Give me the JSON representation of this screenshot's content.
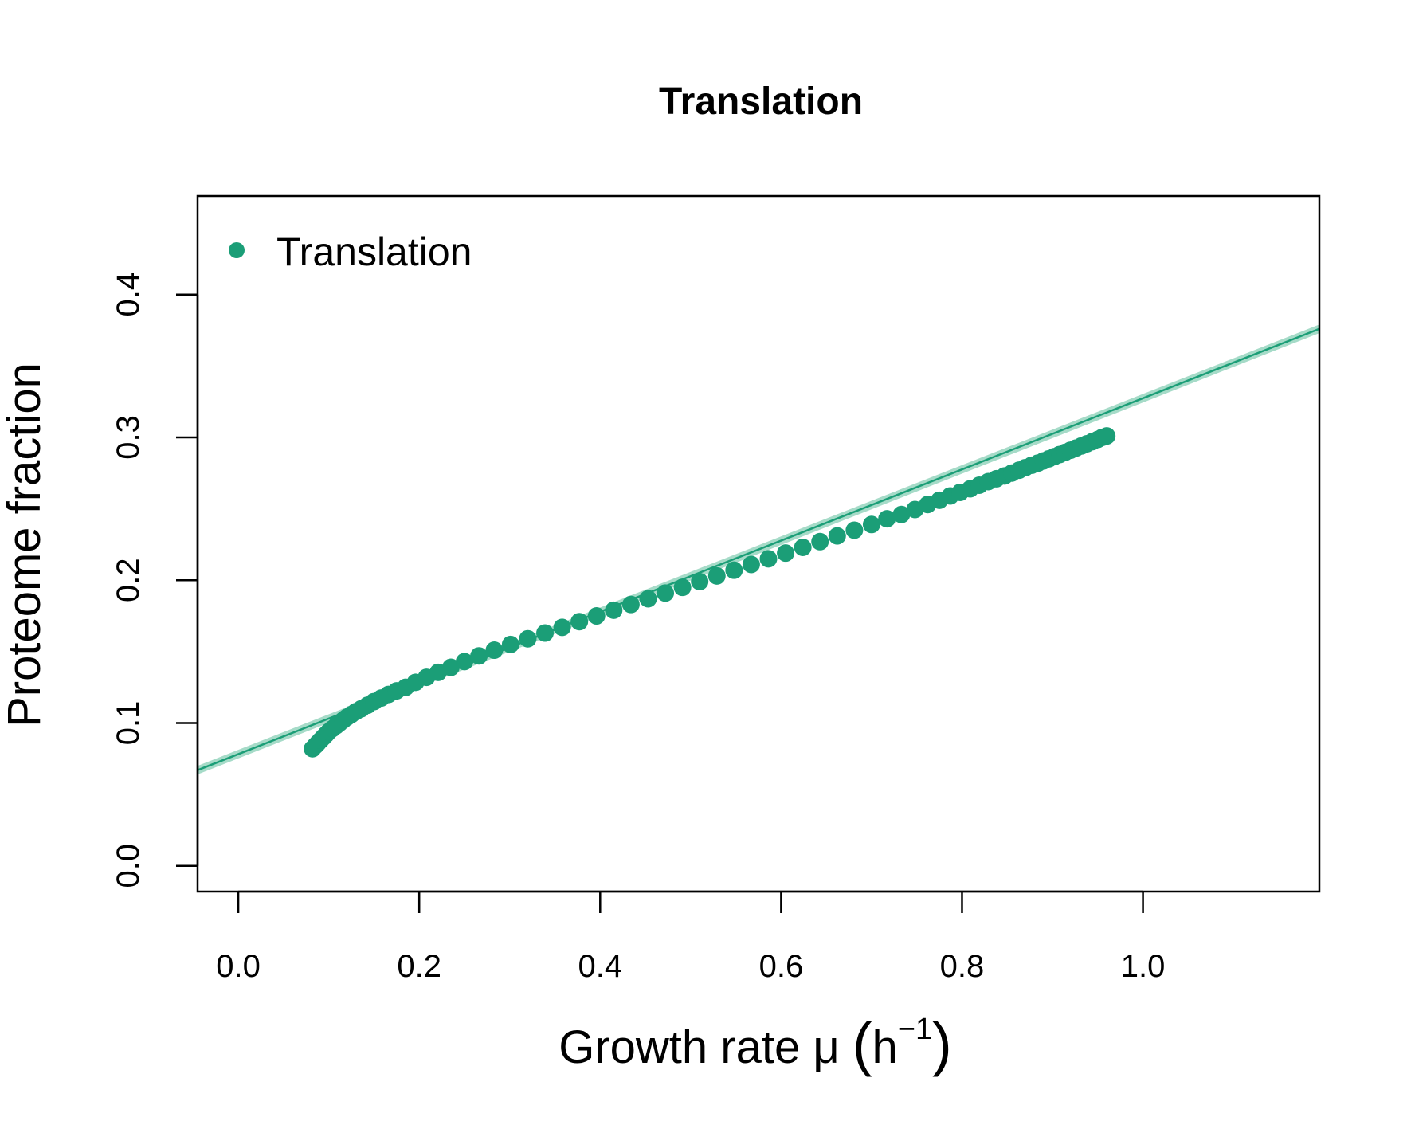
{
  "chart_data": {
    "type": "scatter",
    "title": "Translation",
    "xlabel": {
      "main": "Growth rate μ ",
      "unit_base": "h",
      "unit_exp": "−1"
    },
    "ylabel": "Proteome fraction",
    "xlim": [
      -0.045,
      1.195
    ],
    "ylim": [
      -0.018,
      0.469
    ],
    "x_ticks": [
      0.0,
      0.2,
      0.4,
      0.6,
      0.8,
      1.0
    ],
    "x_tick_labels": [
      "0.0",
      "0.2",
      "0.4",
      "0.6",
      "0.8",
      "1.0"
    ],
    "y_ticks": [
      0.0,
      0.1,
      0.2,
      0.3,
      0.4
    ],
    "y_tick_labels": [
      "0.0",
      "0.1",
      "0.2",
      "0.3",
      "0.4"
    ],
    "grid": false,
    "legend": {
      "position": "top-left",
      "entries": [
        {
          "label": "Translation",
          "color": "#1b9e77"
        }
      ]
    },
    "series": [
      {
        "name": "Translation",
        "color": "#1b9e77",
        "points": [
          [
            0.082,
            0.082
          ],
          [
            0.085,
            0.084
          ],
          [
            0.088,
            0.086
          ],
          [
            0.091,
            0.088
          ],
          [
            0.094,
            0.09
          ],
          [
            0.097,
            0.092
          ],
          [
            0.1,
            0.094
          ],
          [
            0.104,
            0.096
          ],
          [
            0.108,
            0.098
          ],
          [
            0.112,
            0.1
          ],
          [
            0.116,
            0.102
          ],
          [
            0.12,
            0.104
          ],
          [
            0.125,
            0.106
          ],
          [
            0.13,
            0.108
          ],
          [
            0.136,
            0.11
          ],
          [
            0.143,
            0.1125
          ],
          [
            0.15,
            0.115
          ],
          [
            0.158,
            0.1175
          ],
          [
            0.166,
            0.12
          ],
          [
            0.175,
            0.1225
          ],
          [
            0.185,
            0.125
          ],
          [
            0.196,
            0.1285
          ],
          [
            0.208,
            0.132
          ],
          [
            0.221,
            0.1355
          ],
          [
            0.235,
            0.139
          ],
          [
            0.25,
            0.143
          ],
          [
            0.266,
            0.147
          ],
          [
            0.283,
            0.151
          ],
          [
            0.301,
            0.155
          ],
          [
            0.32,
            0.159
          ],
          [
            0.339,
            0.163
          ],
          [
            0.358,
            0.167
          ],
          [
            0.377,
            0.171
          ],
          [
            0.396,
            0.175
          ],
          [
            0.415,
            0.179
          ],
          [
            0.434,
            0.183
          ],
          [
            0.453,
            0.187
          ],
          [
            0.472,
            0.191
          ],
          [
            0.491,
            0.195
          ],
          [
            0.51,
            0.199
          ],
          [
            0.529,
            0.203
          ],
          [
            0.548,
            0.207
          ],
          [
            0.567,
            0.211
          ],
          [
            0.586,
            0.215
          ],
          [
            0.605,
            0.219
          ],
          [
            0.624,
            0.223
          ],
          [
            0.643,
            0.227
          ],
          [
            0.662,
            0.231
          ],
          [
            0.681,
            0.235
          ],
          [
            0.7,
            0.239
          ],
          [
            0.717,
            0.243
          ],
          [
            0.733,
            0.246
          ],
          [
            0.748,
            0.2495
          ],
          [
            0.762,
            0.253
          ],
          [
            0.775,
            0.256
          ],
          [
            0.787,
            0.259
          ],
          [
            0.798,
            0.2615
          ],
          [
            0.809,
            0.264
          ],
          [
            0.819,
            0.2665
          ],
          [
            0.829,
            0.269
          ],
          [
            0.838,
            0.271
          ],
          [
            0.847,
            0.273
          ],
          [
            0.855,
            0.275
          ],
          [
            0.863,
            0.277
          ],
          [
            0.87,
            0.2788
          ],
          [
            0.877,
            0.2805
          ],
          [
            0.884,
            0.282
          ],
          [
            0.89,
            0.2835
          ],
          [
            0.896,
            0.285
          ],
          [
            0.902,
            0.2865
          ],
          [
            0.908,
            0.288
          ],
          [
            0.914,
            0.2895
          ],
          [
            0.92,
            0.291
          ],
          [
            0.926,
            0.2925
          ],
          [
            0.932,
            0.294
          ],
          [
            0.938,
            0.2955
          ],
          [
            0.944,
            0.297
          ],
          [
            0.95,
            0.2985
          ],
          [
            0.955,
            0.3
          ],
          [
            0.96,
            0.301
          ]
        ]
      }
    ],
    "fit_line": {
      "color": "#1b9e77",
      "band_color": "#a6dbc8",
      "x_range": [
        -0.045,
        1.195
      ],
      "y_at_ends": [
        0.067,
        0.376
      ],
      "band_halfwidth_at_ends": [
        0.003,
        0.003
      ]
    }
  }
}
